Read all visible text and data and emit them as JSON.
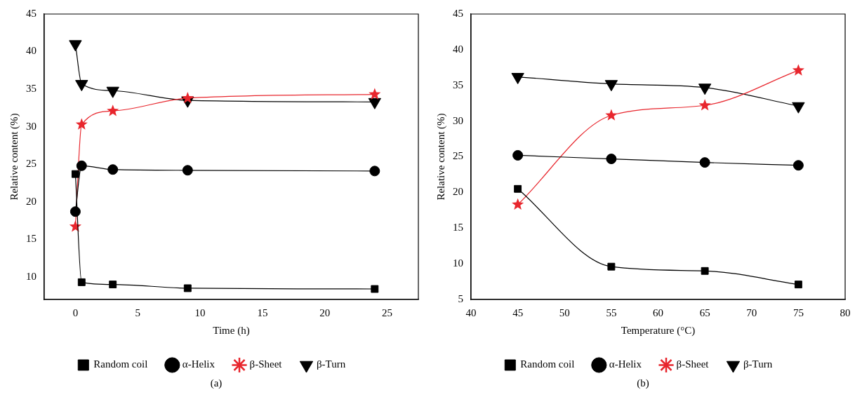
{
  "chart_data": [
    {
      "type": "line",
      "xlabel": "Time (h)",
      "ylabel": "Relative content (%)",
      "x": [
        0,
        0.5,
        3,
        9,
        24
      ],
      "xlim": [
        -2.5,
        27.5
      ],
      "xticks": [
        0,
        5,
        10,
        15,
        20,
        25
      ],
      "ylim": [
        7,
        45
      ],
      "yticks": [
        10,
        15,
        20,
        25,
        30,
        35,
        40,
        45
      ],
      "grid": false,
      "legend": "bottom",
      "annotations": [
        "(a)"
      ],
      "series": [
        {
          "name": "Random coil",
          "color": "#000000",
          "marker": "square",
          "values": [
            23.7,
            9.3,
            9.0,
            8.5,
            8.4
          ]
        },
        {
          "name": "α-Helix",
          "color": "#000000",
          "marker": "circle",
          "values": [
            18.7,
            24.8,
            24.3,
            24.2,
            24.1
          ]
        },
        {
          "name": "β-Sheet",
          "color": "#e8262d",
          "marker": "star",
          "values": [
            16.7,
            30.3,
            32.1,
            33.8,
            34.3
          ]
        },
        {
          "name": "β-Turn",
          "color": "#000000",
          "marker": "triangle",
          "values": [
            41.0,
            35.7,
            34.8,
            33.5,
            33.3
          ]
        }
      ]
    },
    {
      "type": "line",
      "xlabel": "Temperature (°C)",
      "ylabel": "Relative content (%)",
      "x": [
        45,
        55,
        65,
        75
      ],
      "xlim": [
        40,
        80
      ],
      "xticks": [
        40,
        45,
        50,
        55,
        60,
        65,
        70,
        75,
        80
      ],
      "ylim": [
        5,
        45
      ],
      "yticks": [
        5,
        10,
        15,
        20,
        25,
        30,
        35,
        40,
        45
      ],
      "grid": false,
      "legend": "bottom",
      "annotations": [
        "(b)"
      ],
      "series": [
        {
          "name": "Random coil",
          "color": "#000000",
          "marker": "square",
          "values": [
            20.5,
            9.6,
            9.0,
            7.1
          ]
        },
        {
          "name": "α-Helix",
          "color": "#000000",
          "marker": "circle",
          "values": [
            25.2,
            24.7,
            24.2,
            23.8
          ]
        },
        {
          "name": "β-Sheet",
          "color": "#e8262d",
          "marker": "star",
          "values": [
            18.3,
            30.8,
            32.2,
            37.1
          ]
        },
        {
          "name": "β-Turn",
          "color": "#000000",
          "marker": "triangle",
          "values": [
            36.2,
            35.2,
            34.7,
            32.1
          ]
        }
      ]
    }
  ]
}
